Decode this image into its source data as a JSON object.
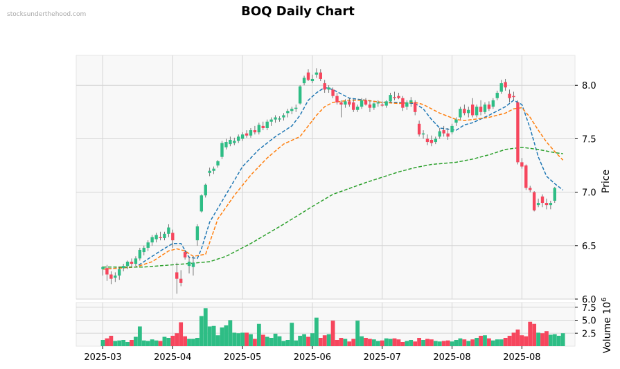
{
  "watermark": "stocksunderthehood.com",
  "chart_data": {
    "type": "candlestick",
    "title": "BOQ Daily Chart",
    "price_axis": {
      "label": "Price",
      "ylim": [
        6.0,
        8.28
      ],
      "ticks": [
        "6.0",
        "6.5",
        "7.0",
        "7.5",
        "8.0"
      ]
    },
    "volume_axis": {
      "label": "Volume  10^6",
      "ylim": [
        0,
        8.4
      ],
      "ticks": [
        "2.5",
        "5.0",
        "7.5"
      ]
    },
    "x_ticks": [
      "2025-03",
      "2025-04",
      "2025-05",
      "2025-06",
      "2025-07",
      "2025-08",
      "2025-08"
    ],
    "grid": true,
    "colors": {
      "up": "#2ebd85",
      "down": "#f6465d",
      "ma_short": "#1f77b4",
      "ma_mid": "#ff7f0e",
      "ma_long": "#2ca02c",
      "panel_bg": "#f8f8f8",
      "grid": "#d4d4d4"
    },
    "candles": [
      {
        "o": 6.28,
        "h": 6.31,
        "l": 6.22,
        "c": 6.3
      },
      {
        "o": 6.29,
        "h": 6.32,
        "l": 6.17,
        "c": 6.23
      },
      {
        "o": 6.23,
        "h": 6.26,
        "l": 6.14,
        "c": 6.19
      },
      {
        "o": 6.2,
        "h": 6.25,
        "l": 6.16,
        "c": 6.22
      },
      {
        "o": 6.22,
        "h": 6.3,
        "l": 6.18,
        "c": 6.28
      },
      {
        "o": 6.29,
        "h": 6.33,
        "l": 6.26,
        "c": 6.31
      },
      {
        "o": 6.31,
        "h": 6.36,
        "l": 6.28,
        "c": 6.35
      },
      {
        "o": 6.35,
        "h": 6.38,
        "l": 6.3,
        "c": 6.33
      },
      {
        "o": 6.33,
        "h": 6.4,
        "l": 6.31,
        "c": 6.38
      },
      {
        "o": 6.38,
        "h": 6.48,
        "l": 6.36,
        "c": 6.46
      },
      {
        "o": 6.44,
        "h": 6.5,
        "l": 6.41,
        "c": 6.48
      },
      {
        "o": 6.48,
        "h": 6.55,
        "l": 6.45,
        "c": 6.53
      },
      {
        "o": 6.53,
        "h": 6.6,
        "l": 6.5,
        "c": 6.58
      },
      {
        "o": 6.56,
        "h": 6.62,
        "l": 6.53,
        "c": 6.6
      },
      {
        "o": 6.58,
        "h": 6.63,
        "l": 6.55,
        "c": 6.57
      },
      {
        "o": 6.57,
        "h": 6.63,
        "l": 6.55,
        "c": 6.61
      },
      {
        "o": 6.61,
        "h": 6.7,
        "l": 6.58,
        "c": 6.67
      },
      {
        "o": 6.62,
        "h": 6.65,
        "l": 6.48,
        "c": 6.55
      },
      {
        "o": 6.25,
        "h": 6.34,
        "l": 6.05,
        "c": 6.19
      },
      {
        "o": 6.19,
        "h": 6.27,
        "l": 6.12,
        "c": 6.15
      },
      {
        "o": 6.44,
        "h": 6.46,
        "l": 6.37,
        "c": 6.39
      },
      {
        "o": 6.31,
        "h": 6.4,
        "l": 6.24,
        "c": 6.35
      },
      {
        "o": 6.3,
        "h": 6.4,
        "l": 6.22,
        "c": 6.34
      },
      {
        "o": 6.55,
        "h": 6.7,
        "l": 6.5,
        "c": 6.68
      },
      {
        "o": 6.82,
        "h": 6.98,
        "l": 6.81,
        "c": 6.97
      },
      {
        "o": 6.97,
        "h": 7.08,
        "l": 6.95,
        "c": 7.07
      },
      {
        "o": 7.18,
        "h": 7.23,
        "l": 7.15,
        "c": 7.2
      },
      {
        "o": 7.2,
        "h": 7.24,
        "l": 7.17,
        "c": 7.22
      },
      {
        "o": 7.25,
        "h": 7.3,
        "l": 7.23,
        "c": 7.29
      },
      {
        "o": 7.33,
        "h": 7.48,
        "l": 7.31,
        "c": 7.46
      },
      {
        "o": 7.42,
        "h": 7.5,
        "l": 7.4,
        "c": 7.47
      },
      {
        "o": 7.45,
        "h": 7.52,
        "l": 7.43,
        "c": 7.49
      },
      {
        "o": 7.46,
        "h": 7.51,
        "l": 7.44,
        "c": 7.48
      },
      {
        "o": 7.48,
        "h": 7.54,
        "l": 7.46,
        "c": 7.52
      },
      {
        "o": 7.5,
        "h": 7.56,
        "l": 7.48,
        "c": 7.54
      },
      {
        "o": 7.55,
        "h": 7.58,
        "l": 7.51,
        "c": 7.53
      },
      {
        "o": 7.53,
        "h": 7.6,
        "l": 7.51,
        "c": 7.58
      },
      {
        "o": 7.58,
        "h": 7.62,
        "l": 7.54,
        "c": 7.56
      },
      {
        "o": 7.56,
        "h": 7.65,
        "l": 7.54,
        "c": 7.63
      },
      {
        "o": 7.62,
        "h": 7.66,
        "l": 7.58,
        "c": 7.6
      },
      {
        "o": 7.6,
        "h": 7.68,
        "l": 7.58,
        "c": 7.66
      },
      {
        "o": 7.66,
        "h": 7.7,
        "l": 7.62,
        "c": 7.68
      },
      {
        "o": 7.68,
        "h": 7.72,
        "l": 7.65,
        "c": 7.7
      },
      {
        "o": 7.68,
        "h": 7.71,
        "l": 7.66,
        "c": 7.69
      },
      {
        "o": 7.7,
        "h": 7.74,
        "l": 7.67,
        "c": 7.72
      },
      {
        "o": 7.74,
        "h": 7.78,
        "l": 7.7,
        "c": 7.76
      },
      {
        "o": 7.76,
        "h": 7.8,
        "l": 7.73,
        "c": 7.78
      },
      {
        "o": 7.78,
        "h": 7.82,
        "l": 7.75,
        "c": 7.79
      },
      {
        "o": 7.83,
        "h": 8.0,
        "l": 7.82,
        "c": 7.99
      },
      {
        "o": 8.02,
        "h": 8.09,
        "l": 8.0,
        "c": 8.07
      },
      {
        "o": 8.12,
        "h": 8.15,
        "l": 8.04,
        "c": 8.05
      },
      {
        "o": 8.04,
        "h": 8.1,
        "l": 8.02,
        "c": 8.06
      },
      {
        "o": 8.1,
        "h": 8.16,
        "l": 8.07,
        "c": 8.12
      },
      {
        "o": 8.12,
        "h": 8.15,
        "l": 8.04,
        "c": 8.06
      },
      {
        "o": 8.02,
        "h": 8.05,
        "l": 7.93,
        "c": 7.96
      },
      {
        "o": 7.96,
        "h": 8.0,
        "l": 7.93,
        "c": 7.98
      },
      {
        "o": 7.96,
        "h": 7.98,
        "l": 7.88,
        "c": 7.9
      },
      {
        "o": 7.9,
        "h": 7.93,
        "l": 7.82,
        "c": 7.84
      },
      {
        "o": 7.84,
        "h": 7.86,
        "l": 7.7,
        "c": 7.82
      },
      {
        "o": 7.82,
        "h": 7.87,
        "l": 7.79,
        "c": 7.85
      },
      {
        "o": 7.85,
        "h": 7.88,
        "l": 7.8,
        "c": 7.82
      },
      {
        "o": 7.84,
        "h": 7.87,
        "l": 7.75,
        "c": 7.77
      },
      {
        "o": 7.77,
        "h": 7.82,
        "l": 7.75,
        "c": 7.8
      },
      {
        "o": 7.8,
        "h": 7.88,
        "l": 7.78,
        "c": 7.86
      },
      {
        "o": 7.86,
        "h": 7.88,
        "l": 7.81,
        "c": 7.82
      },
      {
        "o": 7.82,
        "h": 7.86,
        "l": 7.75,
        "c": 7.79
      },
      {
        "o": 7.79,
        "h": 7.84,
        "l": 7.77,
        "c": 7.83
      },
      {
        "o": 7.83,
        "h": 7.86,
        "l": 7.8,
        "c": 7.84
      },
      {
        "o": 7.82,
        "h": 7.85,
        "l": 7.8,
        "c": 7.81
      },
      {
        "o": 7.81,
        "h": 7.86,
        "l": 7.79,
        "c": 7.85
      },
      {
        "o": 7.85,
        "h": 7.93,
        "l": 7.84,
        "c": 7.91
      },
      {
        "o": 7.89,
        "h": 7.94,
        "l": 7.86,
        "c": 7.88
      },
      {
        "o": 7.9,
        "h": 7.93,
        "l": 7.87,
        "c": 7.88
      },
      {
        "o": 7.88,
        "h": 7.9,
        "l": 7.76,
        "c": 7.79
      },
      {
        "o": 7.8,
        "h": 7.86,
        "l": 7.77,
        "c": 7.84
      },
      {
        "o": 7.84,
        "h": 7.89,
        "l": 7.8,
        "c": 7.86
      },
      {
        "o": 7.84,
        "h": 7.86,
        "l": 7.72,
        "c": 7.75
      },
      {
        "o": 7.64,
        "h": 7.67,
        "l": 7.52,
        "c": 7.54
      },
      {
        "o": 7.54,
        "h": 7.58,
        "l": 7.5,
        "c": 7.55
      },
      {
        "o": 7.5,
        "h": 7.54,
        "l": 7.44,
        "c": 7.47
      },
      {
        "o": 7.49,
        "h": 7.53,
        "l": 7.43,
        "c": 7.46
      },
      {
        "o": 7.47,
        "h": 7.52,
        "l": 7.45,
        "c": 7.5
      },
      {
        "o": 7.52,
        "h": 7.6,
        "l": 7.5,
        "c": 7.57
      },
      {
        "o": 7.58,
        "h": 7.62,
        "l": 7.52,
        "c": 7.55
      },
      {
        "o": 7.55,
        "h": 7.6,
        "l": 7.49,
        "c": 7.52
      },
      {
        "o": 7.56,
        "h": 7.64,
        "l": 7.54,
        "c": 7.62
      },
      {
        "o": 7.65,
        "h": 7.7,
        "l": 7.62,
        "c": 7.68
      },
      {
        "o": 7.7,
        "h": 7.8,
        "l": 7.68,
        "c": 7.78
      },
      {
        "o": 7.78,
        "h": 7.82,
        "l": 7.72,
        "c": 7.74
      },
      {
        "o": 7.74,
        "h": 7.8,
        "l": 7.7,
        "c": 7.77
      },
      {
        "o": 7.82,
        "h": 7.88,
        "l": 7.7,
        "c": 7.72
      },
      {
        "o": 7.72,
        "h": 7.82,
        "l": 7.7,
        "c": 7.8
      },
      {
        "o": 7.8,
        "h": 7.86,
        "l": 7.72,
        "c": 7.75
      },
      {
        "o": 7.75,
        "h": 7.84,
        "l": 7.73,
        "c": 7.82
      },
      {
        "o": 7.82,
        "h": 7.85,
        "l": 7.76,
        "c": 7.78
      },
      {
        "o": 7.8,
        "h": 7.88,
        "l": 7.78,
        "c": 7.86
      },
      {
        "o": 7.88,
        "h": 7.95,
        "l": 7.86,
        "c": 7.93
      },
      {
        "o": 7.94,
        "h": 8.05,
        "l": 7.92,
        "c": 8.02
      },
      {
        "o": 8.03,
        "h": 8.06,
        "l": 7.95,
        "c": 7.98
      },
      {
        "o": 7.92,
        "h": 7.96,
        "l": 7.84,
        "c": 7.88
      },
      {
        "o": 7.9,
        "h": 7.94,
        "l": 7.86,
        "c": 7.89
      },
      {
        "o": 7.84,
        "h": 7.86,
        "l": 7.26,
        "c": 7.28
      },
      {
        "o": 7.28,
        "h": 7.32,
        "l": 7.22,
        "c": 7.24
      },
      {
        "o": 7.25,
        "h": 7.26,
        "l": 7.02,
        "c": 7.04
      },
      {
        "o": 7.04,
        "h": 7.06,
        "l": 7.0,
        "c": 7.02
      },
      {
        "o": 7.0,
        "h": 7.01,
        "l": 6.82,
        "c": 6.83
      },
      {
        "o": 6.88,
        "h": 6.94,
        "l": 6.86,
        "c": 6.9
      },
      {
        "o": 6.96,
        "h": 6.98,
        "l": 6.86,
        "c": 6.9
      },
      {
        "o": 6.9,
        "h": 6.94,
        "l": 6.84,
        "c": 6.88
      },
      {
        "o": 6.88,
        "h": 6.92,
        "l": 6.84,
        "c": 6.9
      },
      {
        "o": 6.92,
        "h": 7.05,
        "l": 6.9,
        "c": 7.04
      }
    ],
    "volumes": [
      1.2,
      1.5,
      2.0,
      1.0,
      1.1,
      1.2,
      0.8,
      1.2,
      1.8,
      3.8,
      1.1,
      1.0,
      1.3,
      1.1,
      1.0,
      1.8,
      1.6,
      2.0,
      2.5,
      4.6,
      1.9,
      1.4,
      1.4,
      1.6,
      5.8,
      7.3,
      3.8,
      3.9,
      2.1,
      3.6,
      4.0,
      5.0,
      2.6,
      2.5,
      2.6,
      2.6,
      2.3,
      1.4,
      4.3,
      2.2,
      1.8,
      1.6,
      2.4,
      1.9,
      1.0,
      1.2,
      4.5,
      1.1,
      2.0,
      2.3,
      1.8,
      2.5,
      5.5,
      1.6,
      2.1,
      2.3,
      4.9,
      1.2,
      1.6,
      1.4,
      0.9,
      1.4,
      4.9,
      1.9,
      1.6,
      1.4,
      1.3,
      1.0,
      1.1,
      1.5,
      1.4,
      1.5,
      1.3,
      0.8,
      1.0,
      1.2,
      0.9,
      1.6,
      1.2,
      1.4,
      1.3,
      1.0,
      0.9,
      1.0,
      1.1,
      0.9,
      1.2,
      1.5,
      1.3,
      1.0,
      1.3,
      1.6,
      2.0,
      2.1,
      1.5,
      1.1,
      1.3,
      1.3,
      1.6,
      2.0,
      2.6,
      3.2,
      2.1,
      1.9,
      4.7,
      4.3,
      2.6,
      2.5,
      2.9,
      2.2,
      2.3,
      2.0,
      2.5
    ],
    "ma_short": [
      [
        0,
        6.28
      ],
      [
        8,
        6.3
      ],
      [
        14,
        6.45
      ],
      [
        17,
        6.52
      ],
      [
        19,
        6.52
      ],
      [
        21,
        6.39
      ],
      [
        23,
        6.38
      ],
      [
        24,
        6.47
      ],
      [
        26,
        6.72
      ],
      [
        30,
        6.98
      ],
      [
        34,
        7.24
      ],
      [
        38,
        7.4
      ],
      [
        42,
        7.52
      ],
      [
        46,
        7.62
      ],
      [
        48,
        7.72
      ],
      [
        50,
        7.86
      ],
      [
        52,
        7.93
      ],
      [
        54,
        7.98
      ],
      [
        56,
        7.96
      ],
      [
        60,
        7.88
      ],
      [
        64,
        7.86
      ],
      [
        68,
        7.84
      ],
      [
        72,
        7.84
      ],
      [
        76,
        7.83
      ],
      [
        78,
        7.78
      ],
      [
        80,
        7.68
      ],
      [
        82,
        7.6
      ],
      [
        86,
        7.58
      ],
      [
        88,
        7.63
      ],
      [
        90,
        7.65
      ],
      [
        94,
        7.72
      ],
      [
        98,
        7.8
      ],
      [
        100,
        7.86
      ],
      [
        102,
        7.82
      ],
      [
        104,
        7.6
      ],
      [
        106,
        7.33
      ],
      [
        108,
        7.15
      ],
      [
        110,
        7.08
      ],
      [
        112,
        7.02
      ]
    ],
    "ma_mid": [
      [
        0,
        6.28
      ],
      [
        8,
        6.3
      ],
      [
        12,
        6.35
      ],
      [
        16,
        6.45
      ],
      [
        18,
        6.47
      ],
      [
        20,
        6.45
      ],
      [
        22,
        6.4
      ],
      [
        25,
        6.42
      ],
      [
        28,
        6.75
      ],
      [
        32,
        6.97
      ],
      [
        36,
        7.16
      ],
      [
        40,
        7.32
      ],
      [
        44,
        7.45
      ],
      [
        48,
        7.52
      ],
      [
        50,
        7.62
      ],
      [
        52,
        7.72
      ],
      [
        54,
        7.8
      ],
      [
        56,
        7.84
      ],
      [
        60,
        7.86
      ],
      [
        64,
        7.86
      ],
      [
        68,
        7.84
      ],
      [
        72,
        7.83
      ],
      [
        76,
        7.84
      ],
      [
        78,
        7.82
      ],
      [
        82,
        7.74
      ],
      [
        86,
        7.68
      ],
      [
        88,
        7.67
      ],
      [
        90,
        7.68
      ],
      [
        94,
        7.7
      ],
      [
        98,
        7.74
      ],
      [
        100,
        7.78
      ],
      [
        102,
        7.79
      ],
      [
        104,
        7.7
      ],
      [
        106,
        7.58
      ],
      [
        108,
        7.47
      ],
      [
        110,
        7.38
      ],
      [
        112,
        7.3
      ]
    ],
    "ma_long": [
      [
        0,
        6.3
      ],
      [
        10,
        6.3
      ],
      [
        20,
        6.33
      ],
      [
        26,
        6.35
      ],
      [
        30,
        6.4
      ],
      [
        36,
        6.52
      ],
      [
        44,
        6.7
      ],
      [
        52,
        6.89
      ],
      [
        56,
        6.98
      ],
      [
        64,
        7.09
      ],
      [
        72,
        7.19
      ],
      [
        76,
        7.23
      ],
      [
        80,
        7.26
      ],
      [
        86,
        7.28
      ],
      [
        90,
        7.31
      ],
      [
        94,
        7.35
      ],
      [
        98,
        7.4
      ],
      [
        102,
        7.42
      ],
      [
        106,
        7.4
      ],
      [
        110,
        7.37
      ],
      [
        112,
        7.36
      ]
    ]
  }
}
